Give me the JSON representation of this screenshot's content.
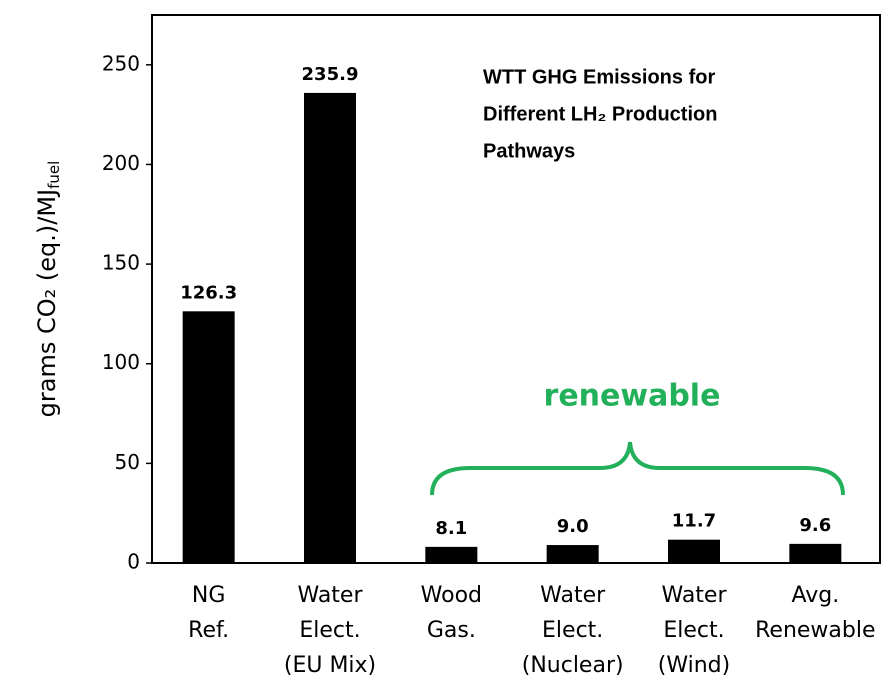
{
  "chart_data": {
    "type": "bar",
    "title": [
      "WTT GHG Emissions for",
      "Different LH₂ Production",
      "Pathways"
    ],
    "y_label": {
      "text": "grams CO₂ (eq.)/MJ",
      "subscript": "fuel"
    },
    "categories": [
      [
        "NG",
        "Ref."
      ],
      [
        "Water",
        "Elect.",
        "(EU Mix)"
      ],
      [
        "Wood",
        "Gas."
      ],
      [
        "Water",
        "Elect.",
        "(Nuclear)"
      ],
      [
        "Water",
        "Elect.",
        "(Wind)"
      ],
      [
        "Avg.",
        "Renewable"
      ]
    ],
    "values": [
      126.3,
      235.9,
      8.1,
      9.0,
      11.7,
      9.6
    ],
    "value_labels": [
      "126.3",
      "235.9",
      "8.1",
      "9.0",
      "11.7",
      "9.6"
    ],
    "color": "#000000",
    "annotation": "renewable",
    "annotation_color": "#22b15a",
    "ylim": [
      0,
      275
    ],
    "yticks": [
      0,
      50,
      100,
      150,
      200,
      250
    ],
    "grid": false
  }
}
